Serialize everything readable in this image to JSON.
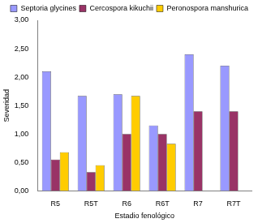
{
  "chart_data": {
    "type": "bar",
    "categories": [
      "R5",
      "R5T",
      "R6",
      "R6T",
      "R7",
      "R7T"
    ],
    "series": [
      {
        "name": "Septoria glycines",
        "color": "#9999ff",
        "values": [
          2.1,
          1.67,
          1.7,
          1.15,
          2.4,
          2.2
        ]
      },
      {
        "name": "Cercospora kikuchii",
        "color": "#993366",
        "values": [
          0.55,
          0.33,
          1.0,
          1.0,
          1.4,
          1.4
        ]
      },
      {
        "name": "Peronospora manshurica",
        "color": "#ffcc00",
        "values": [
          0.68,
          0.45,
          1.67,
          0.83,
          null,
          null
        ]
      }
    ],
    "x_label": "Estadio fenológico",
    "y_label": "Severidad",
    "ylim": [
      0,
      3
    ],
    "yticks": [
      {
        "value": 0,
        "label": "0,00"
      },
      {
        "value": 0.5,
        "label": "0,50"
      },
      {
        "value": 1,
        "label": "1,00"
      },
      {
        "value": 1.5,
        "label": "1,50"
      },
      {
        "value": 2,
        "label": "2,00"
      },
      {
        "value": 2.5,
        "label": "2,50"
      },
      {
        "value": 3,
        "label": "3,00"
      }
    ],
    "grid": false,
    "legend": "upper right"
  }
}
